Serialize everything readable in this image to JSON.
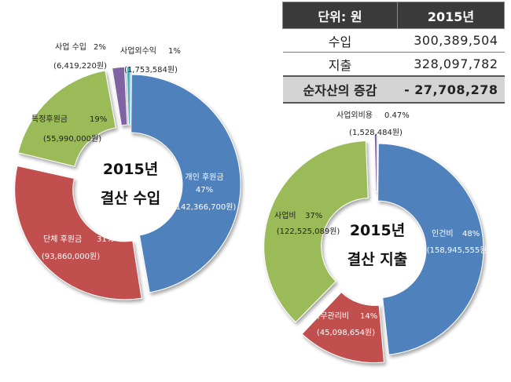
{
  "table": {
    "header": {
      "unit": "단위: 원",
      "year": "2015년"
    },
    "rows": [
      {
        "label": "수입",
        "value": "300,389,504"
      },
      {
        "label": "지출",
        "value": "328,097,782"
      }
    ],
    "net": {
      "label": "순자산의 증감",
      "value": "- 27,708,278"
    }
  },
  "chart_data": [
    {
      "type": "pie",
      "title_line1": "2015년",
      "title_line2": "결산  수입",
      "slices": [
        {
          "name": "개인 후원금",
          "percent_label": "47%",
          "amount_label": "(142,366,700원)",
          "value": 142366700,
          "color": "#4f81bd"
        },
        {
          "name": "단체 후원금",
          "percent_label": "31%",
          "amount_label": "(93,860,000원)",
          "value": 93860000,
          "color": "#c0504d"
        },
        {
          "name": "특정후원금",
          "percent_label": "19%",
          "amount_label": "(55,990,000원)",
          "value": 55990000,
          "color": "#9bbb59"
        },
        {
          "name": "사업 수입",
          "percent_label": "2%",
          "amount_label": "(6,419,220원)",
          "value": 6419220,
          "color": "#8064a2"
        },
        {
          "name": "사업외수익",
          "percent_label": "1%",
          "amount_label": "(1,753,584원)",
          "value": 1753584,
          "color": "#4bacc6"
        }
      ]
    },
    {
      "type": "pie",
      "title_line1": "2015년",
      "title_line2": "결산  지출",
      "slices": [
        {
          "name": "인건비",
          "percent_label": "48%",
          "amount_label": "(158,945,555원)",
          "value": 158945555,
          "color": "#4f81bd"
        },
        {
          "name": "사무관리비",
          "percent_label": "14%",
          "amount_label": "(45,098,654원)",
          "value": 45098654,
          "color": "#c0504d"
        },
        {
          "name": "사업비",
          "percent_label": "37%",
          "amount_label": "(122,525,089원)",
          "value": 122525089,
          "color": "#9bbb59"
        },
        {
          "name": "사업외비용",
          "percent_label": "0.47%",
          "amount_label": "(1,528,484원)",
          "value": 1528484,
          "color": "#8064a2"
        }
      ]
    }
  ]
}
